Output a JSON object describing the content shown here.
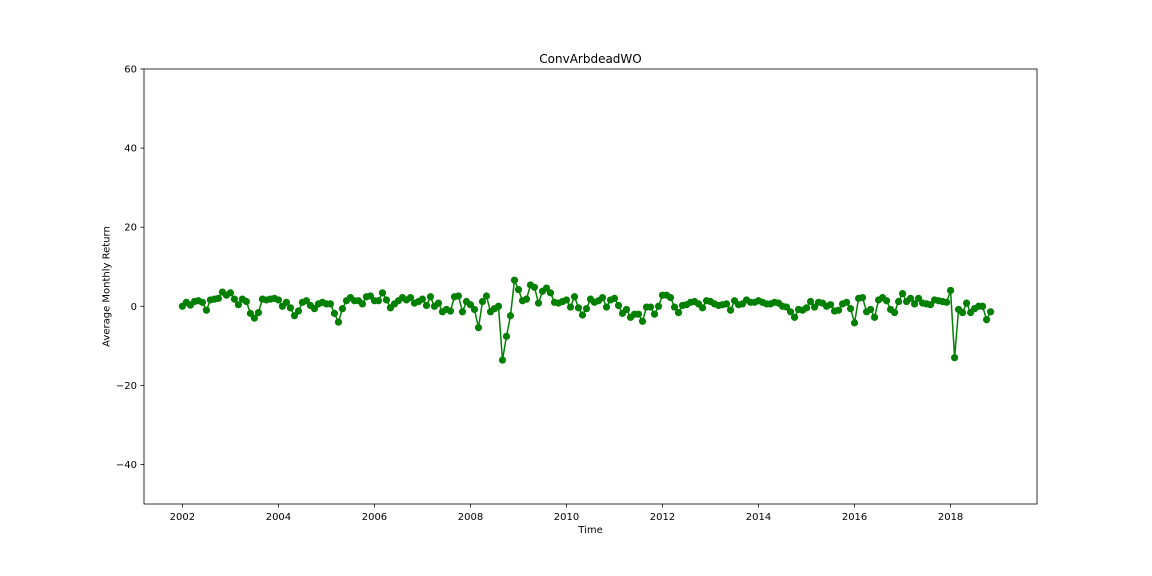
{
  "chart_data": {
    "type": "line",
    "title": "ConvArbdeadWO",
    "xlabel": "Time",
    "ylabel": "Average Monthly Return",
    "xlim": [
      2001.2,
      2019.8
    ],
    "ylim": [
      -50,
      60
    ],
    "x_ticks": [
      2002,
      2004,
      2006,
      2008,
      2010,
      2012,
      2014,
      2016,
      2018
    ],
    "y_ticks": [
      -40,
      -20,
      0,
      20,
      40,
      60
    ],
    "x_tick_labels": [
      "2002",
      "2004",
      "2006",
      "2008",
      "2010",
      "2012",
      "2014",
      "2016",
      "2018"
    ],
    "y_tick_labels": [
      "−40",
      "−20",
      "0",
      "20",
      "40",
      "60"
    ],
    "grid": false,
    "marker": "circle",
    "series": [
      {
        "color": "#008000",
        "x_start": "2002-01",
        "x_step": "1 month",
        "values": [
          0.0,
          1.0,
          0.3,
          1.2,
          1.4,
          1.0,
          -1.0,
          1.6,
          1.8,
          2.0,
          3.6,
          2.8,
          3.4,
          1.8,
          0.4,
          1.8,
          1.2,
          -1.8,
          -3.0,
          -1.6,
          1.8,
          1.6,
          1.8,
          2.0,
          1.6,
          0.0,
          1.0,
          -0.4,
          -2.4,
          -1.2,
          1.0,
          1.4,
          0.2,
          -0.6,
          0.6,
          1.0,
          0.6,
          0.6,
          -1.8,
          -4.0,
          -0.6,
          1.4,
          2.2,
          1.4,
          1.4,
          0.6,
          2.4,
          2.6,
          1.4,
          1.4,
          3.4,
          1.6,
          -0.4,
          0.6,
          1.4,
          2.2,
          1.6,
          2.2,
          0.8,
          1.2,
          1.8,
          0.2,
          2.4,
          0.0,
          0.8,
          -1.4,
          -0.8,
          -1.2,
          2.4,
          2.6,
          -1.4,
          1.2,
          0.4,
          -0.8,
          -5.4,
          1.2,
          2.6,
          -1.4,
          -0.6,
          0.0,
          -13.6,
          -7.6,
          -2.4,
          6.6,
          4.2,
          1.4,
          1.8,
          5.4,
          4.8,
          0.8,
          3.8,
          4.6,
          3.4,
          1.0,
          0.8,
          1.2,
          1.6,
          -0.2,
          2.4,
          -0.4,
          -2.2,
          -0.6,
          1.8,
          1.0,
          1.4,
          2.2,
          -0.2,
          1.6,
          2.0,
          0.2,
          -1.8,
          -0.8,
          -2.8,
          -2.0,
          -2.0,
          -3.8,
          -0.2,
          -0.2,
          -2.0,
          0.0,
          2.8,
          2.8,
          2.2,
          -0.2,
          -1.6,
          0.2,
          0.4,
          1.0,
          1.2,
          0.6,
          -0.4,
          1.4,
          1.2,
          0.6,
          0.2,
          0.4,
          0.6,
          -1.0,
          1.4,
          0.4,
          0.6,
          1.6,
          1.0,
          1.0,
          1.4,
          1.0,
          0.6,
          0.6,
          1.0,
          0.8,
          0.0,
          -0.2,
          -1.4,
          -2.8,
          -0.8,
          -1.0,
          -0.4,
          1.2,
          -0.2,
          1.0,
          0.8,
          0.0,
          0.4,
          -1.2,
          -1.0,
          0.6,
          1.0,
          -0.6,
          -4.2,
          2.0,
          2.2,
          -1.4,
          -0.8,
          -2.8,
          1.6,
          2.2,
          1.4,
          -0.8,
          -1.6,
          1.2,
          3.2,
          1.2,
          2.0,
          0.6,
          2.0,
          0.8,
          0.6,
          0.4,
          1.6,
          1.4,
          1.2,
          1.0,
          4.0,
          -13.0,
          -0.8,
          -1.6,
          0.8,
          -1.6,
          -0.6,
          0.0,
          0.0,
          -3.4,
          -1.4
        ]
      }
    ]
  }
}
